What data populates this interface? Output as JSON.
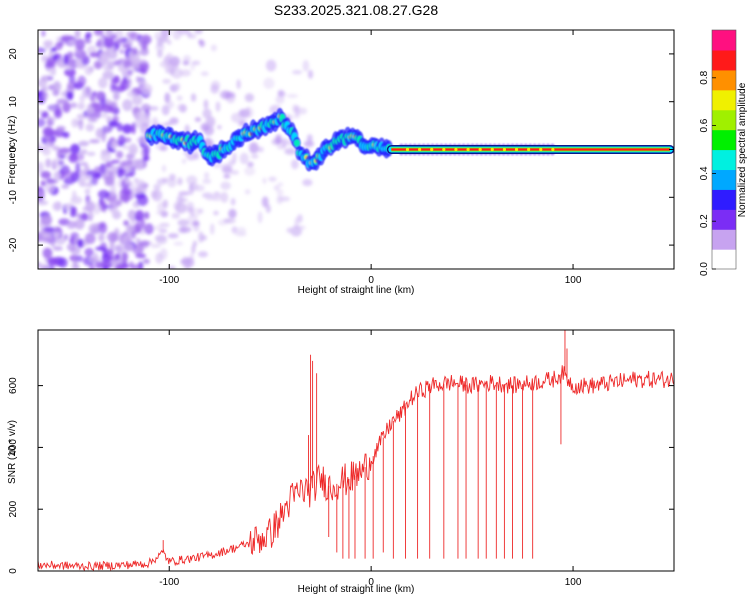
{
  "title": "S233.2025.321.08.27.G28",
  "chart_data": [
    {
      "type": "heatmap",
      "xlabel": "Height of straight line (km)",
      "ylabel": "Frequency (Hz)",
      "xlim": [
        -165,
        150
      ],
      "ylim": [
        -25,
        25
      ],
      "xticks": [
        -100,
        0,
        100
      ],
      "yticks": [
        -20,
        -10,
        0,
        10,
        20
      ],
      "colorbar": {
        "label": "Normalized spectral amplitude",
        "range": [
          0,
          1
        ],
        "ticks": [
          "0.0",
          "0.2",
          "0.4",
          "0.6",
          "0.8"
        ],
        "colors": [
          "#ffffff",
          "#c7a3f0",
          "#7b2df5",
          "#2f1cff",
          "#00a8ff",
          "#00f0e0",
          "#00f000",
          "#a0f000",
          "#f0f000",
          "#ff9000",
          "#ff1a1a",
          "#ff1080"
        ]
      },
      "ridge": {
        "x": [
          -110,
          -105,
          -100,
          -95,
          -90,
          -85,
          -80,
          -75,
          -70,
          -65,
          -60,
          -55,
          -50,
          -45,
          -40,
          -35,
          -30,
          -25,
          -20,
          -15,
          -10,
          -5,
          0,
          10,
          20,
          40,
          60,
          80,
          90,
          100,
          120,
          148
        ],
        "freq": [
          3.0,
          3.0,
          2.5,
          2.0,
          1.5,
          1.5,
          -1.5,
          -0.5,
          1.0,
          2.5,
          3.5,
          4.5,
          5.0,
          6.5,
          4.0,
          -1.0,
          -3.0,
          -1.0,
          0.5,
          2.0,
          2.5,
          1.5,
          0.5,
          0.1,
          0.0,
          0.0,
          0.0,
          0.0,
          0.0,
          0.0,
          0.0,
          0.0
        ]
      }
    },
    {
      "type": "line",
      "xlabel": "Height of straight line (km)",
      "ylabel": "SNR (10 * v/v)",
      "xlim": [
        -165,
        150
      ],
      "ylim": [
        0,
        780
      ],
      "xticks": [
        -100,
        0,
        100
      ],
      "yticks": [
        0,
        200,
        400,
        600
      ],
      "color": "#ee2a2a",
      "series": [
        {
          "name": "SNR",
          "x": [
            -165,
            -140,
            -120,
            -110,
            -103,
            -100,
            -90,
            -80,
            -70,
            -60,
            -50,
            -45,
            -40,
            -35,
            -30,
            -25,
            -20,
            -15,
            -10,
            -5,
            0,
            5,
            10,
            15,
            20,
            25,
            30,
            40,
            50,
            60,
            70,
            80,
            90,
            95,
            100,
            110,
            120,
            130,
            140,
            150
          ],
          "values": [
            20,
            15,
            20,
            25,
            60,
            30,
            40,
            50,
            70,
            90,
            120,
            170,
            230,
            260,
            260,
            300,
            270,
            290,
            300,
            320,
            360,
            420,
            480,
            510,
            560,
            585,
            600,
            610,
            600,
            610,
            600,
            610,
            620,
            640,
            600,
            600,
            610,
            620,
            620,
            620
          ]
        }
      ],
      "spikes": {
        "x": [
          -103,
          -31,
          -30,
          -29,
          -27,
          -21,
          -17,
          -14,
          -11,
          -8,
          -3,
          1,
          6,
          11,
          17,
          23,
          29,
          36,
          43,
          47,
          53,
          57,
          62,
          66,
          70,
          75,
          80,
          94,
          96,
          97
        ],
        "values": [
          100,
          440,
          700,
          680,
          640,
          110,
          60,
          40,
          40,
          40,
          40,
          40,
          60,
          40,
          40,
          40,
          40,
          40,
          40,
          40,
          40,
          40,
          40,
          40,
          40,
          40,
          40,
          410,
          780,
          720
        ]
      }
    }
  ]
}
